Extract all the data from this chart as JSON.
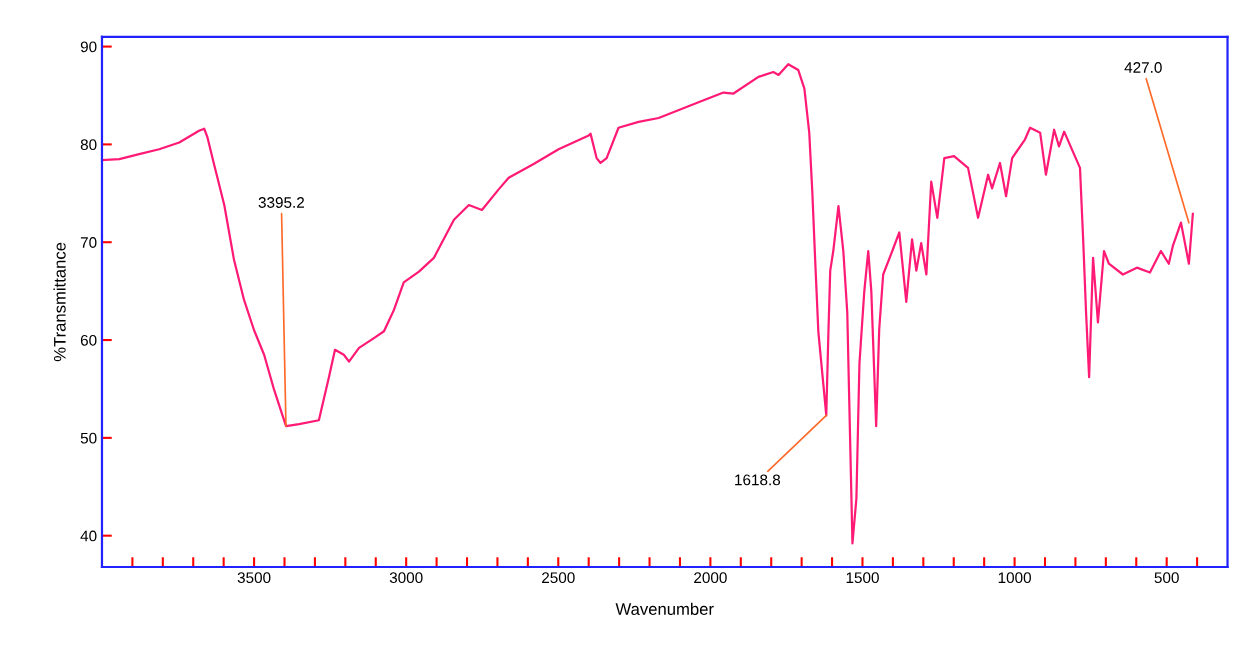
{
  "chart_data": {
    "type": "line",
    "xlabel": "Wavenumber",
    "ylabel": "%Transmittance",
    "xlim": [
      4000,
      300
    ],
    "ylim": [
      36.8,
      91
    ],
    "xticks": [
      {
        "value": 3900,
        "label": null
      },
      {
        "value": 3800,
        "label": null
      },
      {
        "value": 3700,
        "label": null
      },
      {
        "value": 3600,
        "label": null
      },
      3500,
      {
        "value": 3400,
        "label": null
      },
      {
        "value": 3300,
        "label": null
      },
      {
        "value": 3200,
        "label": null
      },
      {
        "value": 3100,
        "label": null
      },
      3000,
      {
        "value": 2900,
        "label": null
      },
      {
        "value": 2800,
        "label": null
      },
      {
        "value": 2700,
        "label": null
      },
      {
        "value": 2600,
        "label": null
      },
      2500,
      {
        "value": 2400,
        "label": null
      },
      {
        "value": 2300,
        "label": null
      },
      {
        "value": 2200,
        "label": null
      },
      {
        "value": 2100,
        "label": null
      },
      2000,
      {
        "value": 1900,
        "label": null
      },
      {
        "value": 1800,
        "label": null
      },
      {
        "value": 1700,
        "label": null
      },
      {
        "value": 1600,
        "label": null
      },
      1500,
      {
        "value": 1400,
        "label": null
      },
      {
        "value": 1300,
        "label": null
      },
      {
        "value": 1200,
        "label": null
      },
      {
        "value": 1100,
        "label": null
      },
      1000,
      {
        "value": 900,
        "label": null
      },
      {
        "value": 800,
        "label": null
      },
      {
        "value": 700,
        "label": null
      },
      {
        "value": 600,
        "label": null
      },
      500,
      {
        "value": 400,
        "label": null
      }
    ],
    "yticks": [
      40,
      50,
      60,
      70,
      80,
      90
    ],
    "grid": false,
    "marker": "none",
    "line_style": "solid",
    "series": [
      {
        "color": "#ff1a75",
        "x": [
          4000,
          3943,
          3878,
          3812,
          3746,
          3681,
          3664,
          3654,
          3631,
          3598,
          3566,
          3533,
          3500,
          3467,
          3434,
          3395,
          3352,
          3287,
          3254,
          3234,
          3205,
          3188,
          3155,
          3106,
          3073,
          3040,
          3008,
          2958,
          2909,
          2843,
          2794,
          2751,
          2696,
          2663,
          2581,
          2499,
          2400,
          2394,
          2374,
          2361,
          2341,
          2302,
          2236,
          2170,
          2039,
          1957,
          1924,
          1842,
          1793,
          1776,
          1744,
          1711,
          1691,
          1675,
          1665,
          1655,
          1645,
          1619,
          1612,
          1606,
          1596,
          1579,
          1563,
          1550,
          1533,
          1520,
          1510,
          1494,
          1481,
          1471,
          1455,
          1445,
          1432,
          1402,
          1379,
          1356,
          1337,
          1323,
          1307,
          1290,
          1274,
          1254,
          1231,
          1199,
          1153,
          1120,
          1087,
          1074,
          1048,
          1028,
          1008,
          966,
          949,
          916,
          897,
          870,
          854,
          837,
          785,
          775,
          765,
          755,
          742,
          726,
          706,
          690,
          644,
          598,
          555,
          519,
          493,
          480,
          453,
          427,
          414
        ],
        "values": [
          78.4,
          78.5,
          79.0,
          79.5,
          80.2,
          81.4,
          81.6,
          80.8,
          77.9,
          73.8,
          68.2,
          64.1,
          61.0,
          58.5,
          54.9,
          51.2,
          51.4,
          51.8,
          56.2,
          59.0,
          58.5,
          57.8,
          59.2,
          60.2,
          60.9,
          63.1,
          65.9,
          67.0,
          68.4,
          72.3,
          73.8,
          73.3,
          75.4,
          76.6,
          78.0,
          79.5,
          80.9,
          81.1,
          78.6,
          78.1,
          78.6,
          81.7,
          82.3,
          82.7,
          84.3,
          85.3,
          85.2,
          86.9,
          87.4,
          87.1,
          88.2,
          87.6,
          85.7,
          81.2,
          75.2,
          67.8,
          60.8,
          52.3,
          60.8,
          67.1,
          69.1,
          73.7,
          69.1,
          62.8,
          39.2,
          43.8,
          57.6,
          65.0,
          69.1,
          65.0,
          51.2,
          61.1,
          66.7,
          69.1,
          71.0,
          63.9,
          70.3,
          67.1,
          69.9,
          66.7,
          76.2,
          72.5,
          78.6,
          78.8,
          77.6,
          72.5,
          76.9,
          75.5,
          78.1,
          74.7,
          78.6,
          80.5,
          81.7,
          81.2,
          76.9,
          81.5,
          79.8,
          81.3,
          77.6,
          70.6,
          62.8,
          56.2,
          68.4,
          61.8,
          69.1,
          67.8,
          66.7,
          67.4,
          66.9,
          69.1,
          67.8,
          69.6,
          72.0,
          67.8,
          72.9
        ]
      }
    ],
    "annotations": [
      {
        "text": "3395.2",
        "x": 3395.2,
        "y": 51.2
      },
      {
        "text": "1618.8",
        "x": 1618.8,
        "y": 52.3
      },
      {
        "text": "427.0",
        "x": 427.0,
        "y": 72.0
      }
    ]
  }
}
